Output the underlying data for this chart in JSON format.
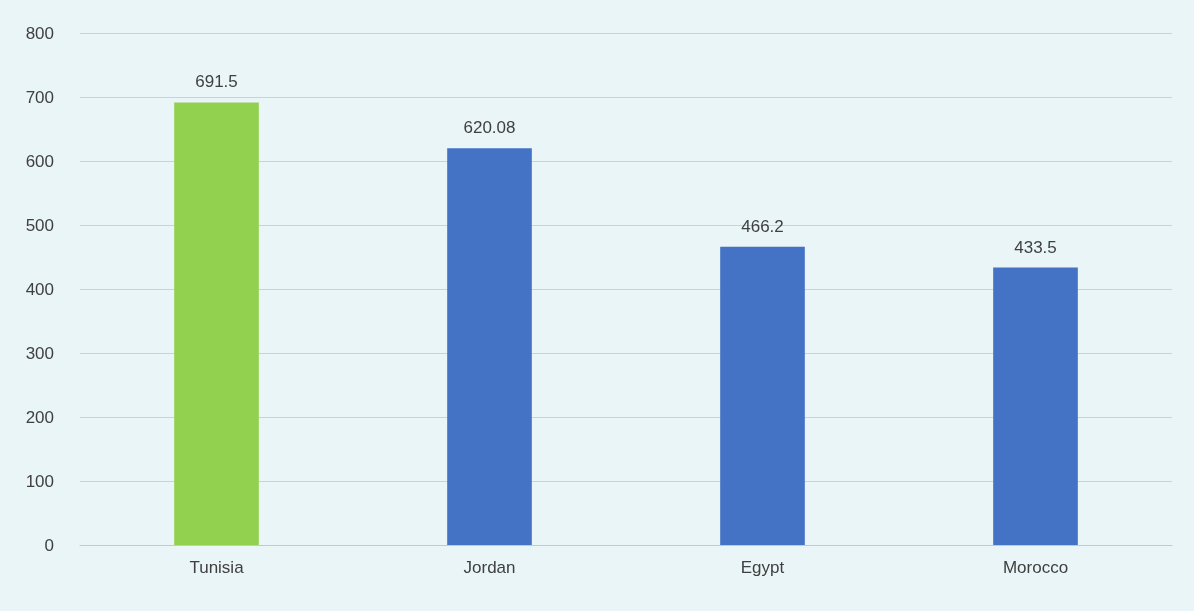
{
  "chart_data": {
    "type": "bar",
    "categories": [
      "Tunisia",
      "Jordan",
      "Egypt",
      "Morocco"
    ],
    "values": [
      691.5,
      620.08,
      466.2,
      433.5
    ],
    "colors": [
      "#92d050",
      "#4472c4",
      "#4472c4",
      "#4472c4"
    ],
    "ylim": [
      0,
      800
    ],
    "yticks": [
      0,
      100,
      200,
      300,
      400,
      500,
      600,
      700,
      800
    ],
    "grid": "y",
    "data_labels": true
  }
}
